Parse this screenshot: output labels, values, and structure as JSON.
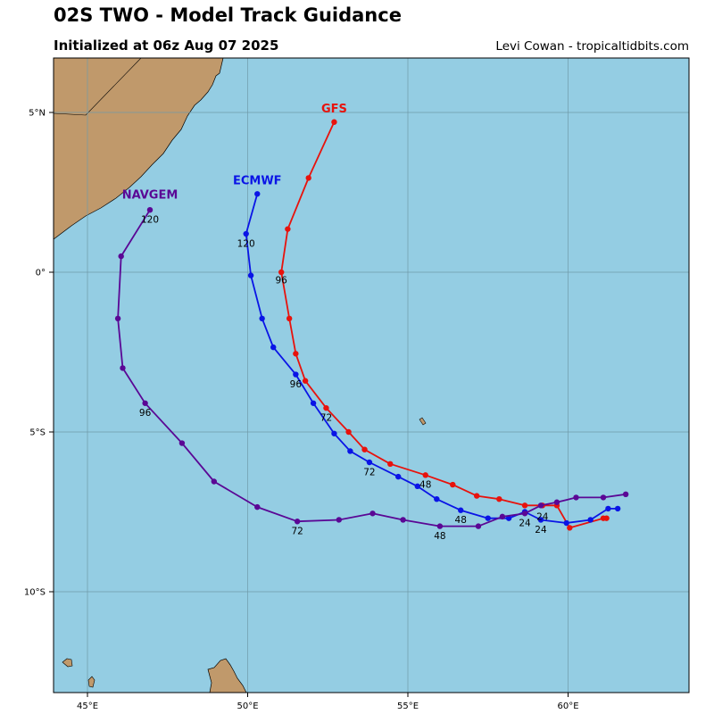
{
  "header": {
    "title": "02S TWO - Model Track Guidance",
    "subtitle": "Initialized at 06z Aug 07 2025",
    "credit": "Levi Cowan - tropicaltidbits.com"
  },
  "colors": {
    "ocean": "#94cde3",
    "land": "#c0996b",
    "grid": "#6f9aa8"
  },
  "axes": {
    "lon_ticks": [
      {
        "value": 45,
        "label": "45°E"
      },
      {
        "value": 50,
        "label": "50°E"
      },
      {
        "value": 55,
        "label": "55°E"
      },
      {
        "value": 60,
        "label": "60°E"
      }
    ],
    "lat_ticks": [
      {
        "value": 5,
        "label": "5°N"
      },
      {
        "value": 0,
        "label": "0°"
      },
      {
        "value": -5,
        "label": "5°S"
      },
      {
        "value": -10,
        "label": "10°S"
      }
    ]
  },
  "tracks": [
    {
      "name": "GFS",
      "color": "#e8120c",
      "points": [
        [
          61.2,
          -7.7
        ],
        [
          61.1,
          -7.7
        ],
        [
          60.05,
          -8.0
        ],
        [
          59.65,
          -7.3
        ],
        [
          59.2,
          -7.3
        ],
        [
          58.65,
          -7.3
        ],
        [
          57.85,
          -7.1
        ],
        [
          57.15,
          -7.0
        ],
        [
          56.4,
          -6.65
        ],
        [
          55.55,
          -6.35
        ],
        [
          54.45,
          -6.0
        ],
        [
          53.65,
          -5.55
        ],
        [
          53.15,
          -5.0
        ],
        [
          52.45,
          -4.25
        ],
        [
          51.8,
          -3.4
        ],
        [
          51.5,
          -2.55
        ],
        [
          51.3,
          -1.45
        ],
        [
          51.05,
          0.0
        ],
        [
          51.25,
          1.35
        ],
        [
          51.9,
          2.95
        ],
        [
          52.7,
          4.7
        ]
      ],
      "label": {
        "text": "GFS",
        "lon": 52.7,
        "lat": 5.0
      },
      "hour_labels": [
        {
          "text": "24",
          "lon": 59.2,
          "lat": -7.75
        },
        {
          "text": "48",
          "lon": 55.55,
          "lat": -6.75
        },
        {
          "text": "72",
          "lon": 52.45,
          "lat": -4.65
        },
        {
          "text": "96",
          "lon": 51.05,
          "lat": -0.35
        }
      ]
    },
    {
      "name": "ECMWF",
      "color": "#0a14e6",
      "points": [
        [
          61.55,
          -7.4
        ],
        [
          61.25,
          -7.4
        ],
        [
          60.7,
          -7.75
        ],
        [
          59.95,
          -7.85
        ],
        [
          59.15,
          -7.75
        ],
        [
          58.65,
          -7.5
        ],
        [
          58.15,
          -7.7
        ],
        [
          57.5,
          -7.7
        ],
        [
          56.65,
          -7.45
        ],
        [
          55.9,
          -7.1
        ],
        [
          55.3,
          -6.7
        ],
        [
          54.7,
          -6.4
        ],
        [
          53.8,
          -5.95
        ],
        [
          53.2,
          -5.6
        ],
        [
          52.7,
          -5.05
        ],
        [
          52.05,
          -4.1
        ],
        [
          51.5,
          -3.2
        ],
        [
          50.8,
          -2.35
        ],
        [
          50.45,
          -1.45
        ],
        [
          50.1,
          -0.1
        ],
        [
          49.95,
          1.2
        ],
        [
          50.3,
          2.45
        ]
      ],
      "label": {
        "text": "ECMWF",
        "lon": 50.3,
        "lat": 2.75
      },
      "hour_labels": [
        {
          "text": "24",
          "lon": 59.15,
          "lat": -8.15
        },
        {
          "text": "48",
          "lon": 56.65,
          "lat": -7.85
        },
        {
          "text": "72",
          "lon": 53.8,
          "lat": -6.35
        },
        {
          "text": "96",
          "lon": 51.5,
          "lat": -3.6
        },
        {
          "text": "120",
          "lon": 49.95,
          "lat": 0.8
        }
      ]
    },
    {
      "name": "NAVGEM",
      "color": "#5a0795",
      "points": [
        [
          61.8,
          -6.95
        ],
        [
          61.1,
          -7.05
        ],
        [
          60.25,
          -7.05
        ],
        [
          59.65,
          -7.2
        ],
        [
          59.15,
          -7.3
        ],
        [
          58.65,
          -7.55
        ],
        [
          57.95,
          -7.65
        ],
        [
          57.2,
          -7.95
        ],
        [
          56.0,
          -7.95
        ],
        [
          54.85,
          -7.75
        ],
        [
          53.9,
          -7.55
        ],
        [
          52.85,
          -7.75
        ],
        [
          51.55,
          -7.8
        ],
        [
          50.3,
          -7.35
        ],
        [
          48.95,
          -6.55
        ],
        [
          47.95,
          -5.35
        ],
        [
          46.8,
          -4.1
        ],
        [
          46.1,
          -3.0
        ],
        [
          45.95,
          -1.45
        ],
        [
          46.05,
          0.5
        ],
        [
          46.95,
          1.95
        ]
      ],
      "label": {
        "text": "NAVGEM",
        "lon": 46.95,
        "lat": 2.3
      },
      "hour_labels": [
        {
          "text": "24",
          "lon": 58.65,
          "lat": -7.95
        },
        {
          "text": "48",
          "lon": 56.0,
          "lat": -8.35
        },
        {
          "text": "72",
          "lon": 51.55,
          "lat": -8.2
        },
        {
          "text": "96",
          "lon": 46.8,
          "lat": -4.5
        },
        {
          "text": "120",
          "lon": 46.95,
          "lat": 1.55
        }
      ]
    }
  ]
}
